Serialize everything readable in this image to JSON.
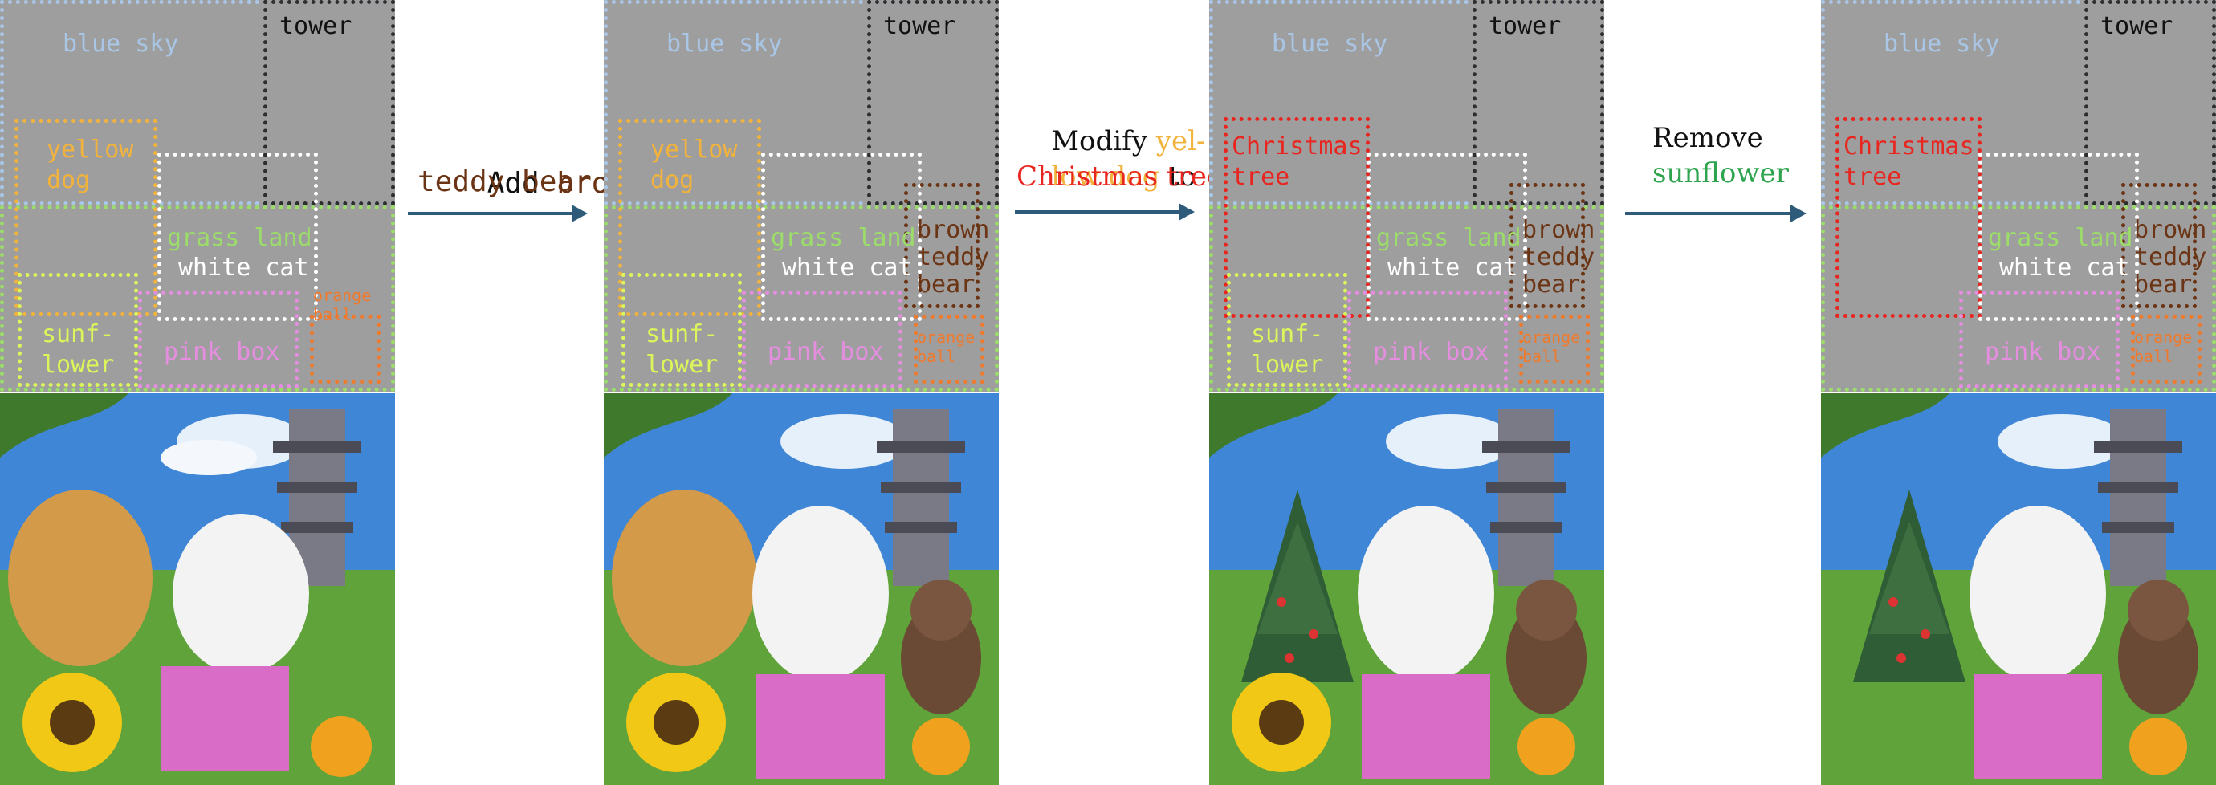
{
  "labels": {
    "blue_sky": "blue sky",
    "tower": "tower",
    "yellow_dog_1": "yellow",
    "yellow_dog_2": "dog",
    "grass_land": "grass land",
    "white_cat": "white cat",
    "orange_ball_1": "orange",
    "orange_ball_2": "ball",
    "sunflower_1": "sunf-",
    "sunflower_2": "lower",
    "pink_box": "pink box",
    "teddy_1": "brown",
    "teddy_2": "teddy",
    "teddy_3": "bear",
    "xmas_1": "Christmas",
    "xmas_2": "tree"
  },
  "operations": {
    "add": {
      "verb": "Add ",
      "object_1": "brown",
      "object_2": "teddy bear"
    },
    "modify": {
      "verb": "Modify ",
      "old_1": "yel-",
      "old_2": "low dog",
      "to": " to",
      "new": "Christmas tree"
    },
    "remove": {
      "verb": "Remove",
      "object": "sunflower"
    }
  },
  "colors": {
    "blue_sky": "#a9c6e6",
    "tower": "#2e2e2e",
    "yellow_dog": "#f2b33d",
    "grass_land": "#9bdc6a",
    "white_cat": "#ffffff",
    "orange_ball": "#f07a2c",
    "sunflower": "#dcf55a",
    "pink_box": "#e58ee0",
    "teddy": "#6b3414",
    "xmas": "#e8251f",
    "remove_green": "#2ea44f",
    "arrow": "#2f5b7a"
  }
}
